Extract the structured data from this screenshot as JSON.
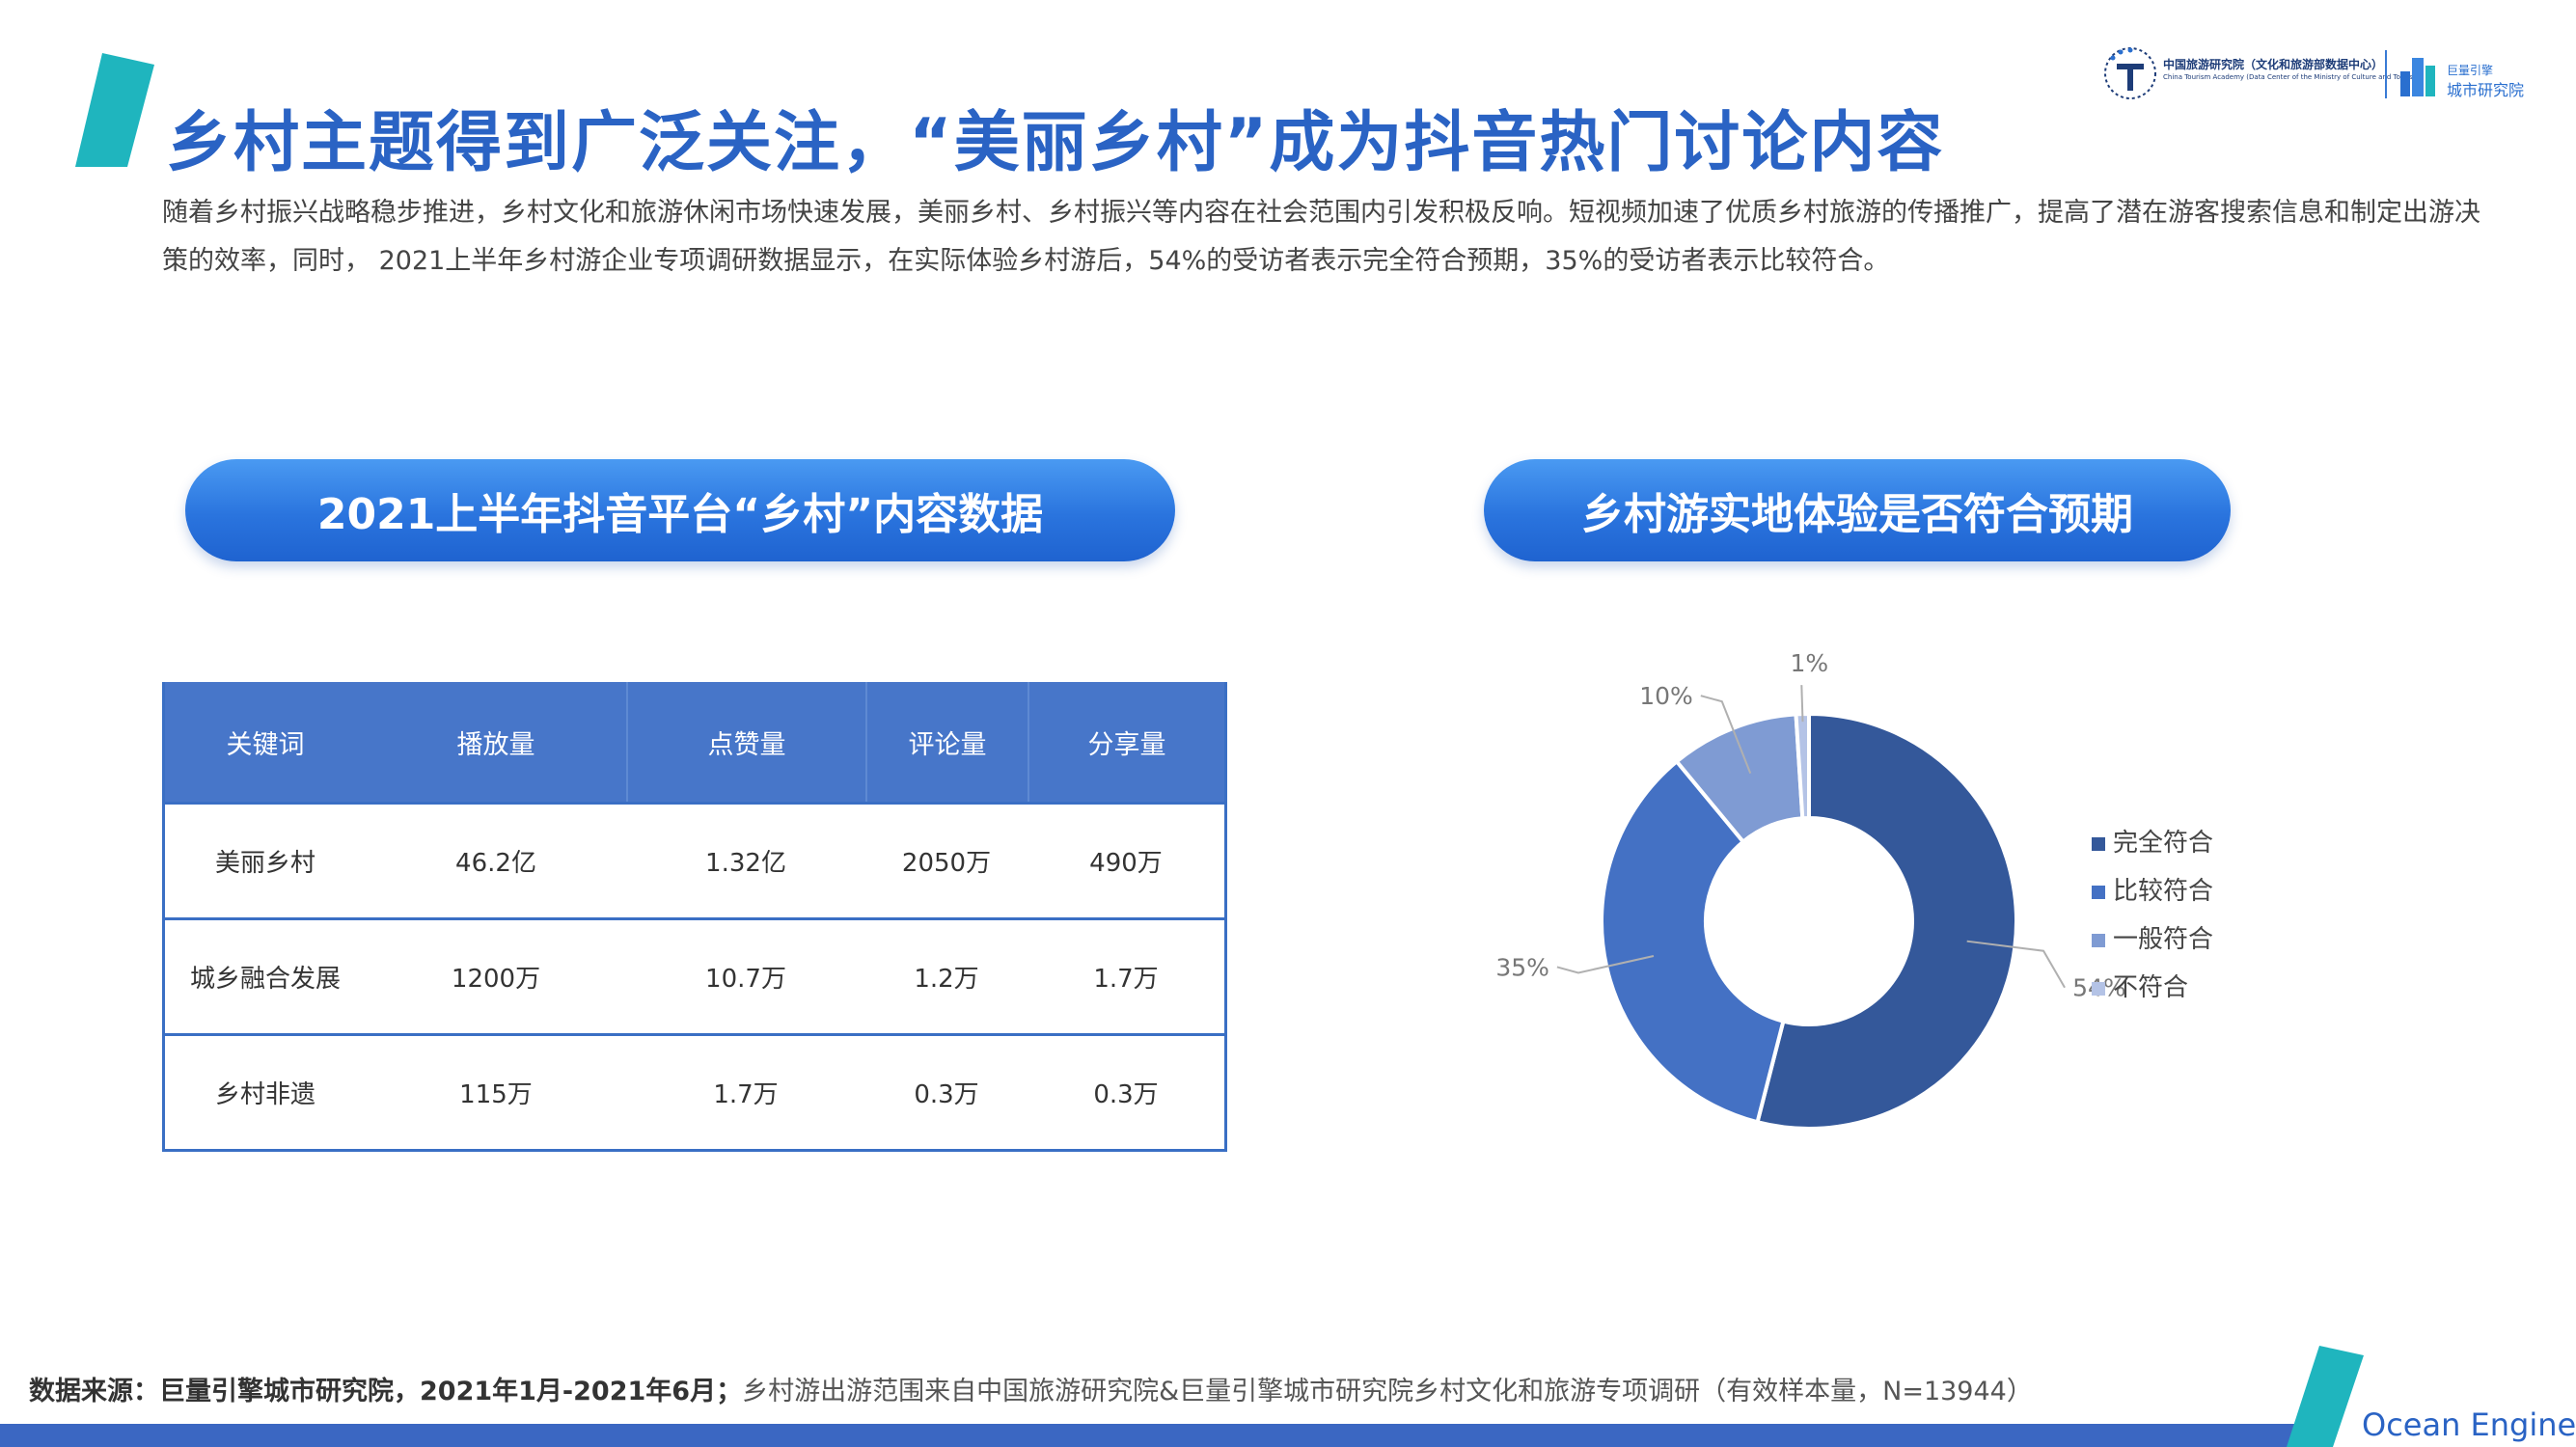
{
  "header": {
    "title": "乡村主题得到广泛关注，“美丽乡村”成为抖音热门讨论内容",
    "intro": "随着乡村振兴战略稳步推进，乡村文化和旅游休闲市场快速发展，美丽乡村、乡村振兴等内容在社会范围内引发积极反响。短视频加速了优质乡村旅游的传播推广，提高了潜在游客搜索信息和制定出游决策的效率，同时， 2021上半年乡村游企业专项调研数据显示，在实际体验乡村游后，54%的受访者表示完全符合预期，35%的受访者表示比较符合。"
  },
  "logos": {
    "tourism_academy": "中国旅游研究院（文化和旅游部数据中心）",
    "tourism_academy_en": "China Tourism Academy (Data Center of the Ministry of Culture and Tourism)",
    "city_institute_line1": "巨量引擎",
    "city_institute_line2": "城市研究院"
  },
  "left_panel": {
    "heading": "2021上半年抖音平台“乡村”内容数据",
    "table": {
      "columns": [
        "关键词",
        "播放量",
        "点赞量",
        "评论量",
        "分享量"
      ],
      "rows": [
        [
          "美丽乡村",
          "46.2亿",
          "1.32亿",
          "2050万",
          "490万"
        ],
        [
          "城乡融合发展",
          "1200万",
          "10.7万",
          "1.2万",
          "1.7万"
        ],
        [
          "乡村非遗",
          "115万",
          "1.7万",
          "0.3万",
          "0.3万"
        ]
      ]
    }
  },
  "right_panel": {
    "heading": "乡村游实地体验是否符合预期"
  },
  "chart_data": {
    "type": "pie",
    "donut": true,
    "title": "",
    "legend_position": "right",
    "slices": [
      {
        "label": "完全符合",
        "value": 54,
        "display": "54%",
        "color": "#34589a"
      },
      {
        "label": "比较符合",
        "value": 35,
        "display": "35%",
        "color": "#4471c4"
      },
      {
        "label": "一般符合",
        "value": 10,
        "display": "10%",
        "color": "#7f9bd3"
      },
      {
        "label": "不符合",
        "value": 1,
        "display": "1%",
        "color": "#b4c3e6"
      }
    ]
  },
  "footer": {
    "source_label": "数据来源：巨量引擎城市研究院，2021年1月-2021年6月；",
    "source_note": "乡村游出游范围来自中国旅游研究院&巨量引擎城市研究院乡村文化和旅游专项调研（有效样本量，N=13944）",
    "brand": "Ocean Engine"
  },
  "colors": {
    "title_blue": "#2a63c4",
    "accent_teal": "#1fb5be",
    "table_header": "#4776c9",
    "footer_bar": "#3b67c2"
  }
}
